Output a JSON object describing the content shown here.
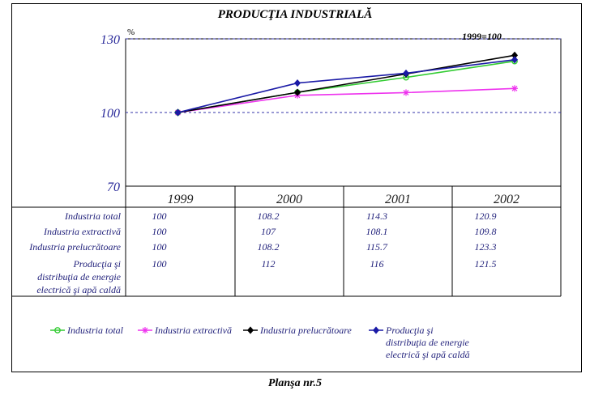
{
  "header": {
    "title": "PRODUCŢIA INDUSTRIALĂ",
    "unit": "%",
    "base_note": "1999=100"
  },
  "footer": {
    "caption": "Planşa nr.5"
  },
  "chart_data": {
    "type": "line",
    "title": "PRODUCŢIA INDUSTRIALĂ",
    "ylabel": "%",
    "ylim": [
      70,
      130
    ],
    "yticks": [
      70,
      100,
      130
    ],
    "grid": "dashed horizontal at 100 and 130",
    "legend_position": "bottom",
    "categories": [
      "1999",
      "2000",
      "2001",
      "2002"
    ],
    "series": [
      {
        "name": "Industria total",
        "label_lines": [
          "Industria total"
        ],
        "color": "#33cc33",
        "marker": "circle",
        "values": [
          100,
          108.2,
          114.3,
          120.9
        ]
      },
      {
        "name": "Industria extractivă",
        "label_lines": [
          "Industria extractivă"
        ],
        "color": "#ee33ee",
        "marker": "star",
        "values": [
          100,
          107,
          108.1,
          109.8
        ]
      },
      {
        "name": "Industria prelucrătoare",
        "label_lines": [
          "Industria prelucrătoare"
        ],
        "color": "#000000",
        "marker": "diamond",
        "values": [
          100,
          108.2,
          115.7,
          123.3
        ]
      },
      {
        "name": "Producţia şi distribuţia de energie electrică şi apă caldă",
        "label_lines": [
          "Producţia şi",
          "distribuţia de energie",
          "electrică şi apă caldă"
        ],
        "color": "#1a1aa6",
        "marker": "diamond",
        "values": [
          100,
          112,
          116,
          121.5
        ]
      }
    ]
  }
}
